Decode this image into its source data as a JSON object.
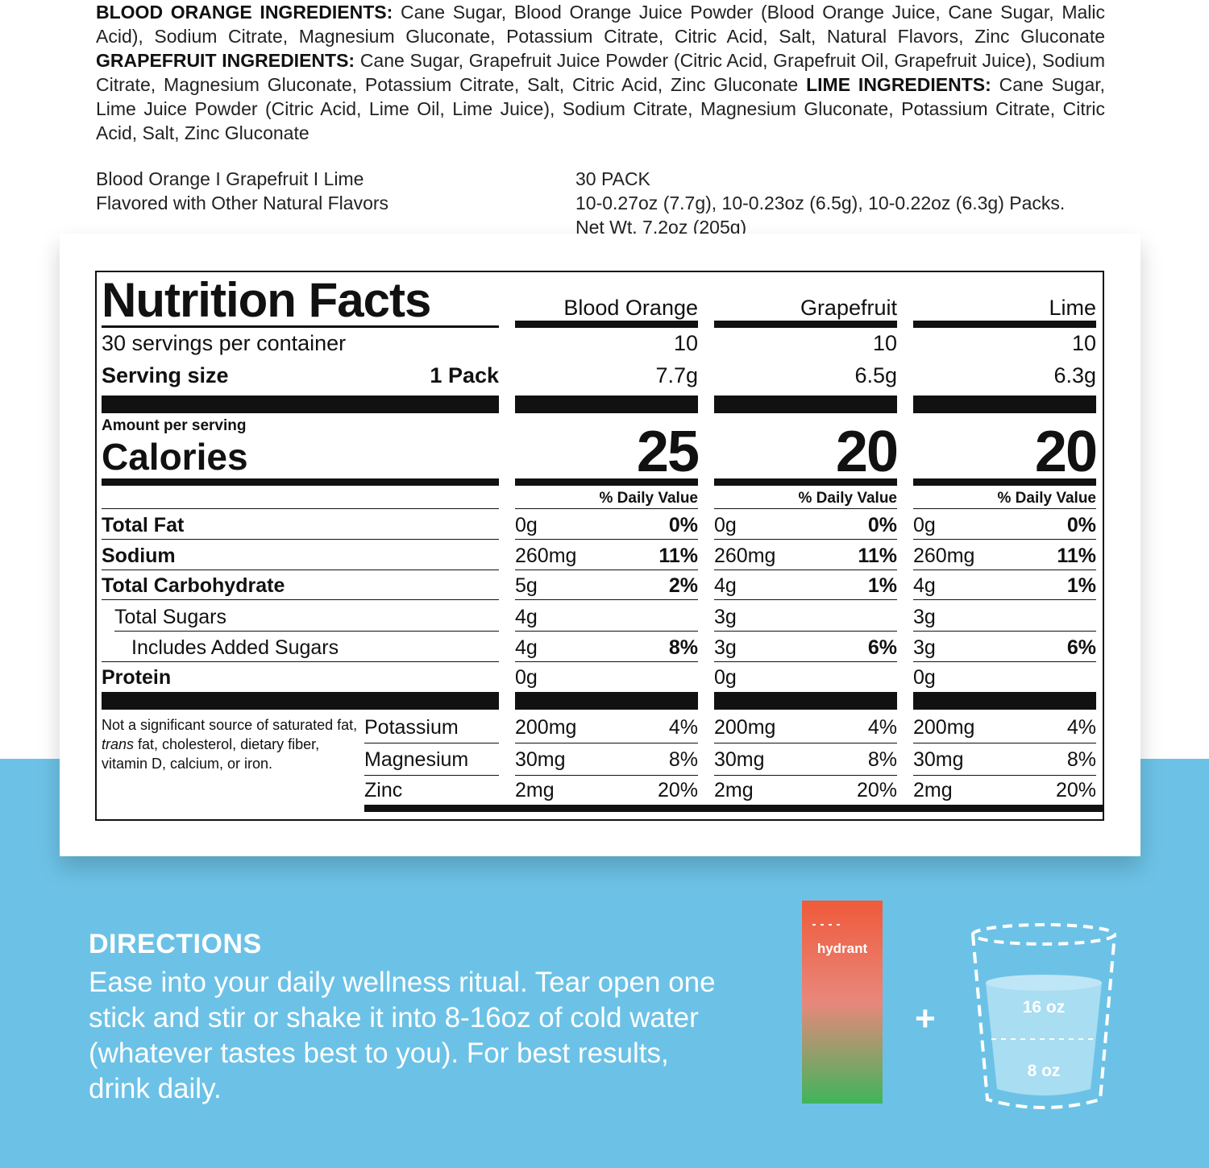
{
  "ingredients": {
    "blood_orange_label": "BLOOD ORANGE INGREDIENTS:",
    "blood_orange_text": " Cane Sugar, Blood Orange Juice Powder (Blood Orange Juice, Cane Sugar, Malic Acid), Sodium Citrate, Magnesium Gluconate, Potassium Citrate, Citric Acid, Salt, Natural Flavors, Zinc Gluconate ",
    "grapefruit_label": "GRAPEFRUIT INGREDIENTS:",
    "grapefruit_text": " Cane Sugar, Grapefruit Juice Powder (Citric Acid, Grapefruit Oil, Grapefruit Juice), Sodium Citrate, Magnesium Gluconate, Potassium Citrate, Salt, Citric Acid, Zinc Gluconate ",
    "lime_label": "LIME INGREDIENTS:",
    "lime_text": " Cane Sugar, Lime Juice Powder (Citric Acid, Lime Oil, Lime Juice), Sodium Citrate, Magnesium Gluconate, Potassium Citrate, Citric Acid, Salt, Zinc Gluconate"
  },
  "product": {
    "flavors_line": "Blood Orange I Grapefruit I Lime",
    "flavored_line": "Flavored with Other Natural Flavors",
    "pack_title": "30 PACK",
    "pack_sizes": "10-0.27oz (7.7g), 10-0.23oz (6.5g), 10-0.22oz (6.3g) Packs.",
    "net_weight": "Net Wt. 7.2oz (205g)"
  },
  "nutrition": {
    "title": "Nutrition Facts",
    "servings_label": "30 servings per container",
    "serving_size_label": "Serving size",
    "serving_size_value": "1 Pack",
    "amount_per_serving": "Amount per serving",
    "calories_label": "Calories",
    "dv_header": "% Daily Value",
    "rows": {
      "total_fat": "Total Fat",
      "sodium": "Sodium",
      "total_carb": "Total Carbohydrate",
      "total_sugars": "Total Sugars",
      "added_sugars": "Includes Added Sugars",
      "protein": "Protein"
    },
    "footnote": "Not a significant source of saturated fat, ",
    "footnote_italic": "trans",
    "footnote_rest": " fat, cholesterol, dietary fiber, vitamin D, calcium, or iron.",
    "minerals": {
      "potassium": "Potassium",
      "magnesium": "Magnesium",
      "zinc": "Zinc"
    },
    "columns": [
      {
        "name": "Blood Orange",
        "servings": "10",
        "size": "7.7g",
        "calories": "25",
        "fat": "0g",
        "fat_dv": "0%",
        "sodium": "260mg",
        "sodium_dv": "11%",
        "carb": "5g",
        "carb_dv": "2%",
        "sugars": "4g",
        "added": "4g",
        "added_dv": "8%",
        "protein": "0g",
        "potassium": "200mg",
        "potassium_dv": "4%",
        "magnesium": "30mg",
        "magnesium_dv": "8%",
        "zinc": "2mg",
        "zinc_dv": "20%"
      },
      {
        "name": "Grapefruit",
        "servings": "10",
        "size": "6.5g",
        "calories": "20",
        "fat": "0g",
        "fat_dv": "0%",
        "sodium": "260mg",
        "sodium_dv": "11%",
        "carb": "4g",
        "carb_dv": "1%",
        "sugars": "3g",
        "added": "3g",
        "added_dv": "6%",
        "protein": "0g",
        "potassium": "200mg",
        "potassium_dv": "4%",
        "magnesium": "30mg",
        "magnesium_dv": "8%",
        "zinc": "2mg",
        "zinc_dv": "20%"
      },
      {
        "name": "Lime",
        "servings": "10",
        "size": "6.3g",
        "calories": "20",
        "fat": "0g",
        "fat_dv": "0%",
        "sodium": "260mg",
        "sodium_dv": "11%",
        "carb": "4g",
        "carb_dv": "1%",
        "sugars": "3g",
        "added": "3g",
        "added_dv": "6%",
        "protein": "0g",
        "potassium": "200mg",
        "potassium_dv": "4%",
        "magnesium": "30mg",
        "magnesium_dv": "8%",
        "zinc": "2mg",
        "zinc_dv": "20%"
      }
    ]
  },
  "directions": {
    "title": "DIRECTIONS",
    "text": "Ease into your daily wellness ritual. Tear open one stick and stir or shake it into 8-16oz of cold water (whatever tastes best to you). For best results, drink daily.",
    "stick_brand": "hydrant",
    "plus": "+",
    "glass_top": "16 oz",
    "glass_bottom": "8 oz"
  },
  "colors": {
    "blue_bg": "#6cc2e6",
    "stick_top": "#ef5a3a",
    "stick_bottom": "#3fb55b",
    "glass_water": "#a8ddf2"
  }
}
